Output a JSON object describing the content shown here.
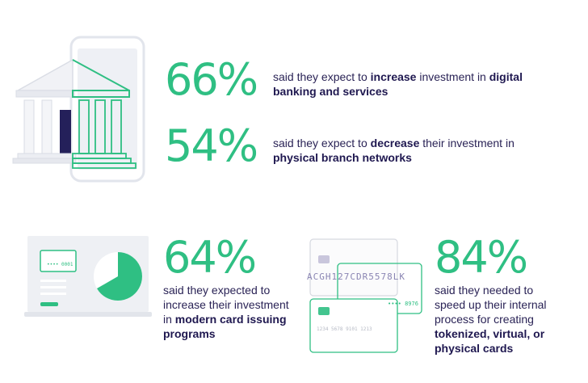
{
  "stats": [
    {
      "value": "66%",
      "text_a": "said they expect to ",
      "bold_a": "increase",
      "text_b": " investment in ",
      "bold_b": "digital banking and services",
      "text_c": ""
    },
    {
      "value": "54%",
      "text_a": "said they expect to ",
      "bold_a": "decrease",
      "text_b": " their investment in ",
      "bold_b": "physical branch networks",
      "text_c": ""
    },
    {
      "value": "64%",
      "text_a": "said they expected to increase their investment in ",
      "bold_a": "modern card issuing programs",
      "text_b": "",
      "bold_b": "",
      "text_c": ""
    },
    {
      "value": "84%",
      "text_a": "said they needed to speed up their internal process for creating ",
      "bold_a": "tokenized, virtual, or physical cards",
      "text_b": "",
      "bold_b": "",
      "text_c": ""
    }
  ],
  "illustrations": {
    "laptop_card_number": "•••• 0001",
    "card_number_main": "ACGH127CDR5578LK",
    "card_number_right": "•••• 8976",
    "card_number_bottom": "1234  5678  9101  1213"
  },
  "colors": {
    "accent_green": "#2fbf83",
    "text_navy": "#2a2356",
    "light_gray": "#eef0f4"
  }
}
